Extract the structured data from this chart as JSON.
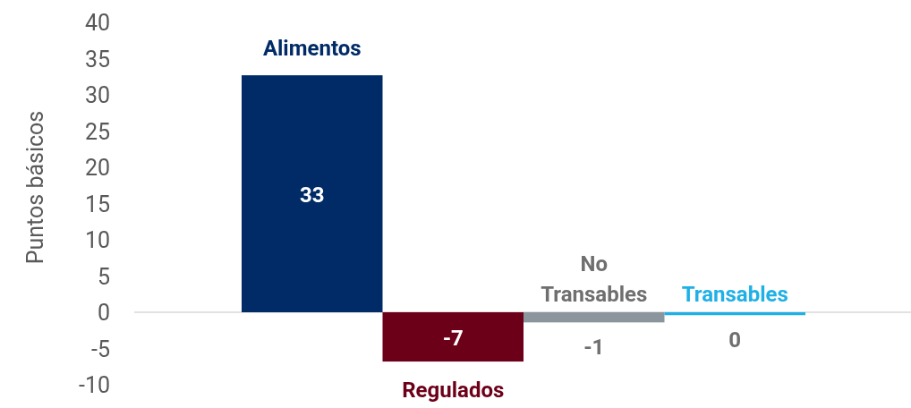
{
  "chart_data": {
    "type": "bar",
    "ylabel": "Puntos básicos",
    "categories": [
      "Alimentos",
      "Regulados",
      "No Transables",
      "Transables"
    ],
    "values": [
      32.7,
      -6.8,
      -1.4,
      -0.4
    ],
    "colors": [
      "#002b66",
      "#6d0019",
      "#8a959d",
      "#1fb0e6"
    ],
    "value_labels": [
      "33",
      "-7",
      "-1",
      "0"
    ],
    "ylim": [
      -10,
      40
    ],
    "yticks": [
      -10,
      -5,
      0,
      5,
      10,
      15,
      20,
      25,
      30,
      35,
      40
    ]
  }
}
